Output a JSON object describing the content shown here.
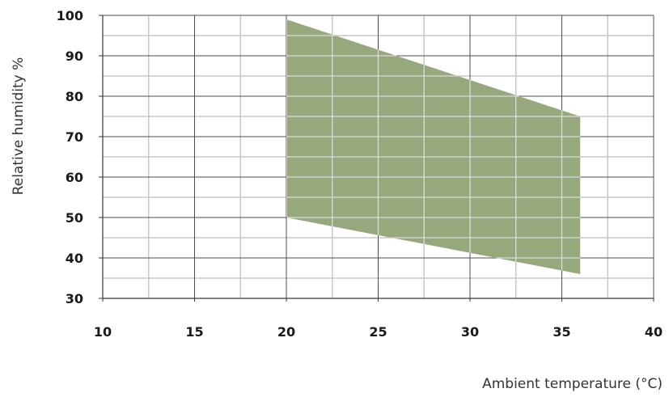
{
  "chart_data": {
    "type": "area",
    "xlabel": "Ambient temperature (°C)",
    "ylabel": "Relative humidity %",
    "xlim": [
      10,
      40
    ],
    "ylim": [
      30,
      100
    ],
    "xticks": [
      "10",
      "15",
      "20",
      "25",
      "30",
      "35",
      "40"
    ],
    "yticks": [
      "100",
      "90",
      "80",
      "70",
      "60",
      "50",
      "40",
      "30"
    ],
    "grid": true,
    "region": {
      "upper": [
        {
          "x": 20,
          "y": 99
        },
        {
          "x": 36,
          "y": 75
        }
      ],
      "lower": [
        {
          "x": 20,
          "y": 50
        },
        {
          "x": 36,
          "y": 36
        }
      ]
    },
    "colors": {
      "fill": "#97a87c",
      "major_grid": "#4d4d4d",
      "minor_grid": "#c8c8c8",
      "overlay_grid": "#dcdcdc"
    }
  }
}
